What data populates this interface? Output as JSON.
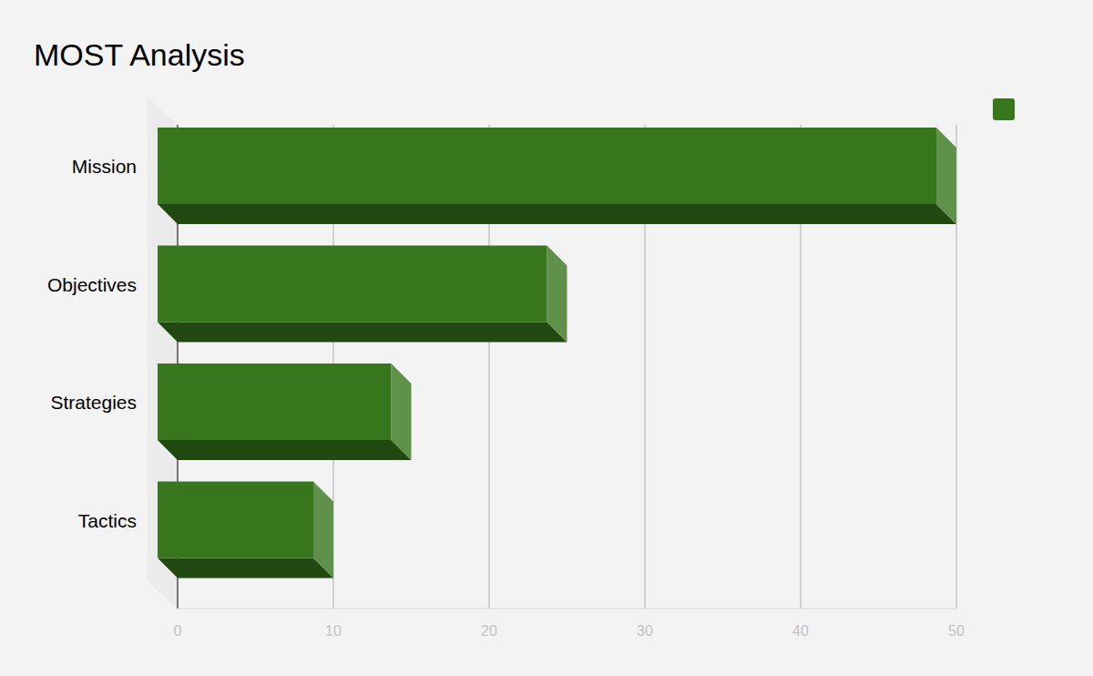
{
  "chart_data": {
    "type": "bar",
    "title": "MOST Analysis",
    "orientation": "horizontal",
    "categories": [
      "Mission",
      "Objectives",
      "Strategies",
      "Tactics"
    ],
    "values": [
      50,
      25,
      15,
      10
    ],
    "color": "#38761d",
    "xlim": [
      0,
      50
    ],
    "xticks": [
      0,
      10,
      20,
      30,
      40,
      50
    ],
    "grid": true,
    "legend": "top-right"
  }
}
